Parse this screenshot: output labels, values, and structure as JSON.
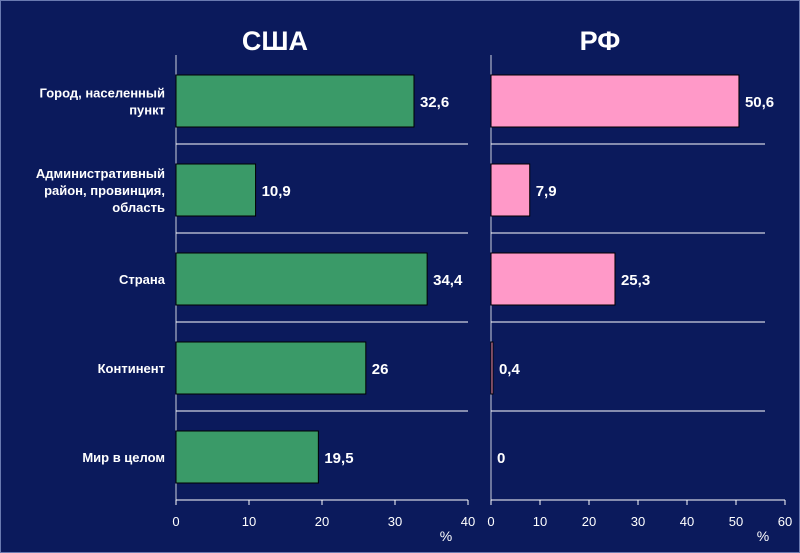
{
  "chart_data": {
    "type": "bar",
    "orientation": "horizontal",
    "categories": [
      "Город, населенный пункт",
      "Административный район, провинция, область",
      "Страна",
      "Континент",
      "Мир в целом"
    ],
    "category_lines": [
      [
        "Город, населенный",
        "пункт"
      ],
      [
        "Административный",
        "район, провинция,",
        "область"
      ],
      [
        "Страна"
      ],
      [
        "Континент"
      ],
      [
        "Мир в целом"
      ]
    ],
    "panels": [
      {
        "title": "США",
        "values": [
          32.6,
          10.9,
          34.4,
          26,
          19.5
        ],
        "value_labels": [
          "32,6",
          "10,9",
          "34,4",
          "26",
          "19,5"
        ],
        "xlim": [
          0,
          40
        ],
        "ticks": [
          0,
          10,
          20,
          30,
          40
        ],
        "xlabel": "%",
        "color": "#3a9a68"
      },
      {
        "title": "РФ",
        "values": [
          50.6,
          7.9,
          25.3,
          0.4,
          0
        ],
        "value_labels": [
          "50,6",
          "7,9",
          "25,3",
          "0,4",
          "0"
        ],
        "xlim": [
          0,
          60
        ],
        "ticks": [
          0,
          10,
          20,
          30,
          40,
          50,
          60
        ],
        "xlabel": "%",
        "color": "#ff99c8"
      }
    ]
  }
}
